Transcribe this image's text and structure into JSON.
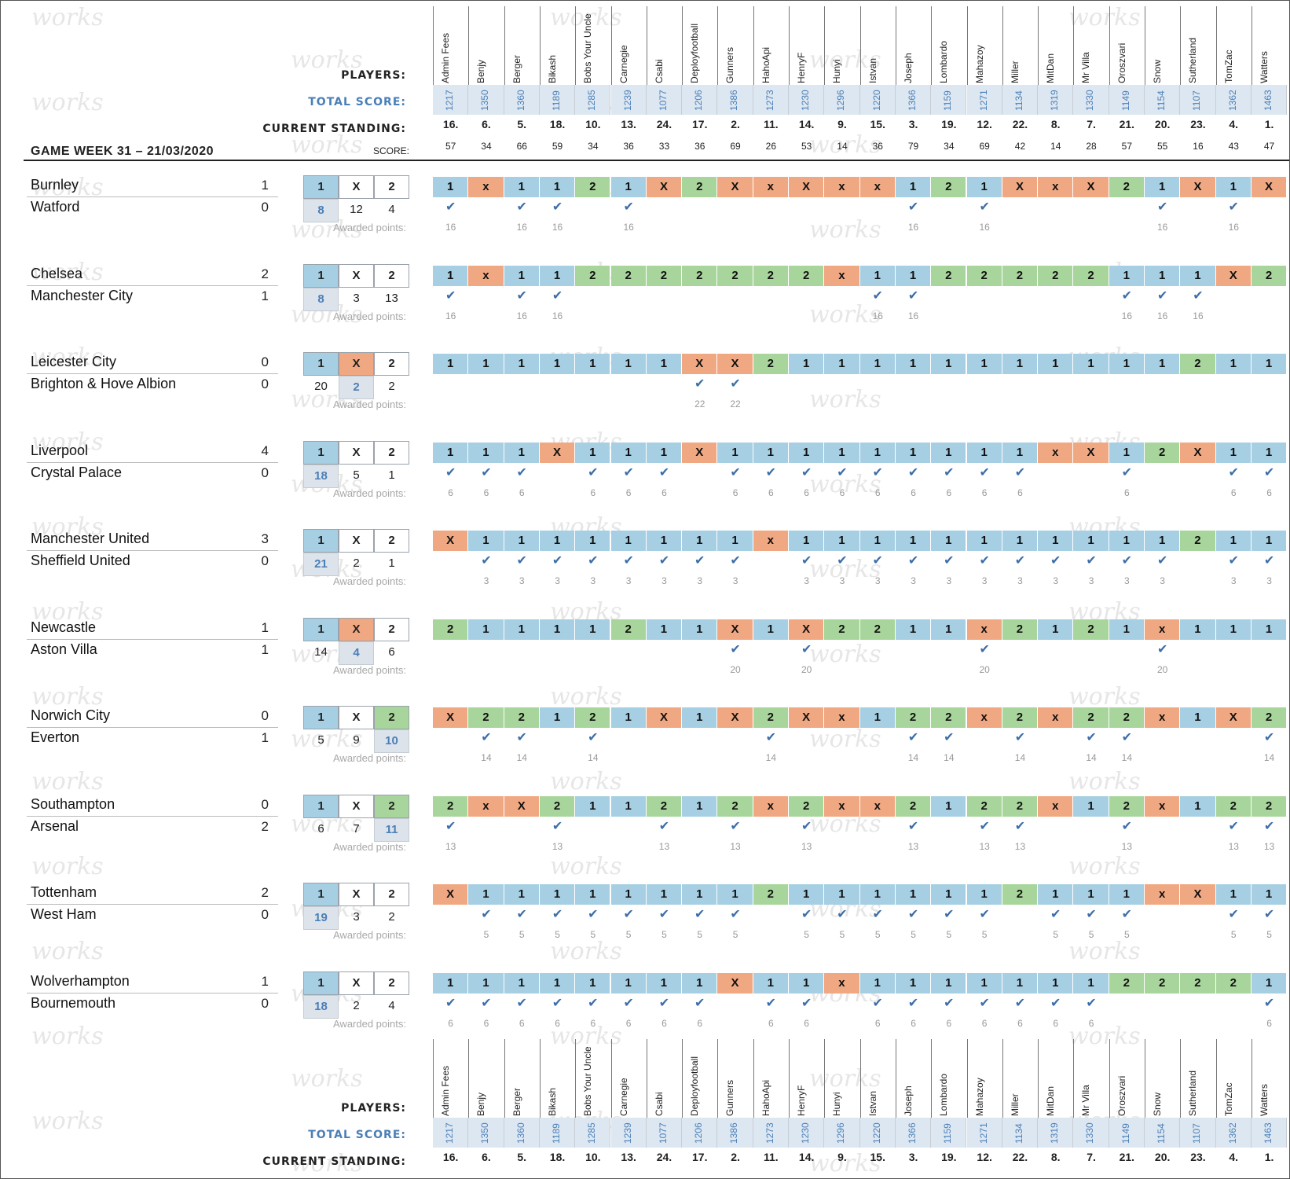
{
  "header": {
    "players_label": "PLAYERS:",
    "total_label": "TOTAL SCORE:",
    "standing_label": "CURRENT STANDING:",
    "score_label": "SCORE:",
    "gameweek_title": "GAME WEEK 31 – 21/03/2020",
    "awarded_label": "Awarded points:"
  },
  "watermark_text": "works",
  "colors": {
    "one": "#a6cfe3",
    "draw": "#f0a882",
    "two": "#a8d59b",
    "accent": "#4a7fb8"
  },
  "players": [
    {
      "name": "Admin Fees",
      "total": "1217",
      "standing": "16.",
      "score": "57"
    },
    {
      "name": "Benjy",
      "total": "1350",
      "standing": "6.",
      "score": "34"
    },
    {
      "name": "Berger",
      "total": "1360",
      "standing": "5.",
      "score": "66"
    },
    {
      "name": "Bikash",
      "total": "1189",
      "standing": "18.",
      "score": "59"
    },
    {
      "name": "Bobs Your Uncle",
      "total": "1285",
      "standing": "10.",
      "score": "34"
    },
    {
      "name": "Carnegie",
      "total": "1239",
      "standing": "13.",
      "score": "36"
    },
    {
      "name": "Csabi",
      "total": "1077",
      "standing": "24.",
      "score": "33"
    },
    {
      "name": "Deployfootball",
      "total": "1206",
      "standing": "17.",
      "score": "36"
    },
    {
      "name": "Gunners",
      "total": "1386",
      "standing": "2.",
      "score": "69"
    },
    {
      "name": "HahoApi",
      "total": "1273",
      "standing": "11.",
      "score": "26"
    },
    {
      "name": "HenryF",
      "total": "1230",
      "standing": "14.",
      "score": "53"
    },
    {
      "name": "Hunyi",
      "total": "1296",
      "standing": "9.",
      "score": "14"
    },
    {
      "name": "Istvan",
      "total": "1220",
      "standing": "15.",
      "score": "36"
    },
    {
      "name": "Joseph",
      "total": "1366",
      "standing": "3.",
      "score": "79"
    },
    {
      "name": "Lombardo",
      "total": "1159",
      "standing": "19.",
      "score": "34"
    },
    {
      "name": "Mahazoy",
      "total": "1271",
      "standing": "12.",
      "score": "69"
    },
    {
      "name": "Miller",
      "total": "1134",
      "standing": "22.",
      "score": "42"
    },
    {
      "name": "MitDan",
      "total": "1319",
      "standing": "8.",
      "score": "14"
    },
    {
      "name": "Mr Villa",
      "total": "1330",
      "standing": "7.",
      "score": "28"
    },
    {
      "name": "Oroszvari",
      "total": "1149",
      "standing": "21.",
      "score": "57"
    },
    {
      "name": "Snow",
      "total": "1154",
      "standing": "20.",
      "score": "55"
    },
    {
      "name": "Sutherland",
      "total": "1107",
      "standing": "23.",
      "score": "16"
    },
    {
      "name": "TomZac",
      "total": "1362",
      "standing": "4.",
      "score": "43"
    },
    {
      "name": "Watters",
      "total": "1463",
      "standing": "1.",
      "score": "47"
    }
  ],
  "matches": [
    {
      "home": "Burnley",
      "away": "Watford",
      "hg": "1",
      "ag": "0",
      "counts": [
        "8",
        "12",
        "4"
      ],
      "result": "1",
      "points": "16",
      "preds": [
        "1",
        "x",
        "1",
        "1",
        "2",
        "1",
        "X",
        "2",
        "X",
        "x",
        "X",
        "x",
        "x",
        "1",
        "2",
        "1",
        "X",
        "x",
        "X",
        "2",
        "1",
        "X",
        "1",
        "X"
      ]
    },
    {
      "home": "Chelsea",
      "away": "Manchester City",
      "hg": "2",
      "ag": "1",
      "counts": [
        "8",
        "3",
        "13"
      ],
      "result": "1",
      "points": "16",
      "preds": [
        "1",
        "x",
        "1",
        "1",
        "2",
        "2",
        "2",
        "2",
        "2",
        "2",
        "2",
        "x",
        "1",
        "1",
        "2",
        "2",
        "2",
        "2",
        "2",
        "1",
        "1",
        "1",
        "X",
        "2"
      ]
    },
    {
      "home": "Leicester City",
      "away": "Brighton & Hove Albion",
      "hg": "0",
      "ag": "0",
      "counts": [
        "20",
        "2",
        "2"
      ],
      "result": "X",
      "points": "22",
      "preds": [
        "1",
        "1",
        "1",
        "1",
        "1",
        "1",
        "1",
        "X",
        "X",
        "2",
        "1",
        "1",
        "1",
        "1",
        "1",
        "1",
        "1",
        "1",
        "1",
        "1",
        "1",
        "2",
        "1",
        "1"
      ]
    },
    {
      "home": "Liverpool",
      "away": "Crystal Palace",
      "hg": "4",
      "ag": "0",
      "counts": [
        "18",
        "5",
        "1"
      ],
      "result": "1",
      "points": "6",
      "preds": [
        "1",
        "1",
        "1",
        "X",
        "1",
        "1",
        "1",
        "X",
        "1",
        "1",
        "1",
        "1",
        "1",
        "1",
        "1",
        "1",
        "1",
        "x",
        "X",
        "1",
        "2",
        "X",
        "1",
        "1"
      ]
    },
    {
      "home": "Manchester United",
      "away": "Sheffield United",
      "hg": "3",
      "ag": "0",
      "counts": [
        "21",
        "2",
        "1"
      ],
      "result": "1",
      "points": "3",
      "preds": [
        "X",
        "1",
        "1",
        "1",
        "1",
        "1",
        "1",
        "1",
        "1",
        "x",
        "1",
        "1",
        "1",
        "1",
        "1",
        "1",
        "1",
        "1",
        "1",
        "1",
        "1",
        "2",
        "1",
        "1"
      ]
    },
    {
      "home": "Newcastle",
      "away": "Aston Villa",
      "hg": "1",
      "ag": "1",
      "counts": [
        "14",
        "4",
        "6"
      ],
      "result": "X",
      "points": "20",
      "preds": [
        "2",
        "1",
        "1",
        "1",
        "1",
        "2",
        "1",
        "1",
        "X",
        "1",
        "X",
        "2",
        "2",
        "1",
        "1",
        "x",
        "2",
        "1",
        "2",
        "1",
        "x",
        "1",
        "1",
        "1"
      ]
    },
    {
      "home": "Norwich City",
      "away": "Everton",
      "hg": "0",
      "ag": "1",
      "counts": [
        "5",
        "9",
        "10"
      ],
      "result": "2",
      "points": "14",
      "preds": [
        "X",
        "2",
        "2",
        "1",
        "2",
        "1",
        "X",
        "1",
        "X",
        "2",
        "X",
        "x",
        "1",
        "2",
        "2",
        "x",
        "2",
        "x",
        "2",
        "2",
        "x",
        "1",
        "X",
        "2"
      ]
    },
    {
      "home": "Southampton",
      "away": "Arsenal",
      "hg": "0",
      "ag": "2",
      "counts": [
        "6",
        "7",
        "11"
      ],
      "result": "2",
      "points": "13",
      "preds": [
        "2",
        "x",
        "X",
        "2",
        "1",
        "1",
        "2",
        "1",
        "2",
        "x",
        "2",
        "x",
        "x",
        "2",
        "1",
        "2",
        "2",
        "x",
        "1",
        "2",
        "x",
        "1",
        "2",
        "2"
      ]
    },
    {
      "home": "Tottenham",
      "away": "West Ham",
      "hg": "2",
      "ag": "0",
      "counts": [
        "19",
        "3",
        "2"
      ],
      "result": "1",
      "points": "5",
      "preds": [
        "X",
        "1",
        "1",
        "1",
        "1",
        "1",
        "1",
        "1",
        "1",
        "2",
        "1",
        "1",
        "1",
        "1",
        "1",
        "1",
        "2",
        "1",
        "1",
        "1",
        "x",
        "X",
        "1",
        "1"
      ]
    },
    {
      "home": "Wolverhampton",
      "away": "Bournemouth",
      "hg": "1",
      "ag": "0",
      "counts": [
        "18",
        "2",
        "4"
      ],
      "result": "1",
      "points": "6",
      "preds": [
        "1",
        "1",
        "1",
        "1",
        "1",
        "1",
        "1",
        "1",
        "X",
        "1",
        "1",
        "x",
        "1",
        "1",
        "1",
        "1",
        "1",
        "1",
        "1",
        "2",
        "2",
        "2",
        "2",
        "1"
      ]
    }
  ]
}
